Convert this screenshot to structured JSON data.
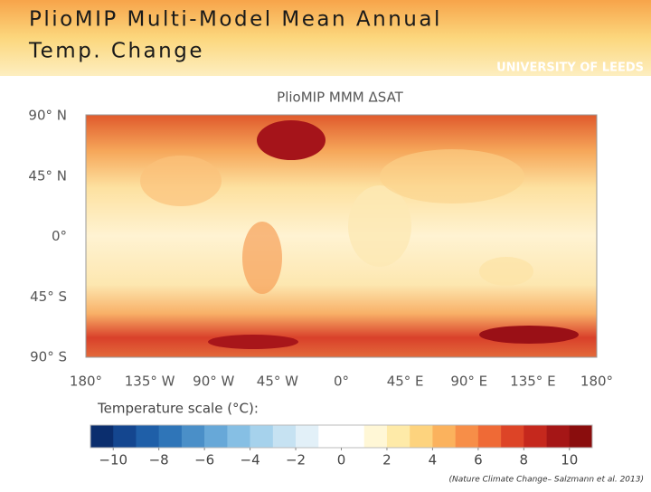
{
  "header": {
    "title_lines": [
      "PlioMIP Multi-Model Mean Annual",
      "Temp. Change"
    ],
    "logo": "UNIVERSITY OF LEEDS"
  },
  "map": {
    "title": "PlioMIP MMM ΔSAT",
    "lat_labels": [
      "90° N",
      "45° N",
      "0°",
      "45° S",
      "90° S"
    ],
    "lon_labels": [
      "180°",
      "135° W",
      "90° W",
      "45° W",
      "0°",
      "45° E",
      "90° E",
      "135° E",
      "180°"
    ]
  },
  "colorbar": {
    "label": "Temperature scale (°C):",
    "lim": [
      -11,
      11
    ],
    "ticks": [
      {
        "value": -10,
        "label": "−10"
      },
      {
        "value": -8,
        "label": "−8"
      },
      {
        "value": -6,
        "label": "−6"
      },
      {
        "value": -4,
        "label": "−4"
      },
      {
        "value": -2,
        "label": "−2"
      },
      0,
      2,
      4,
      6,
      8,
      10
    ],
    "colors": [
      "#0b2e6e",
      "#14468f",
      "#1f5fa8",
      "#2f75b8",
      "#4a8fc8",
      "#67a8d8",
      "#86bfe4",
      "#a6d2ec",
      "#c6e2f2",
      "#e2f0f8",
      "#ffffff",
      "#ffffff",
      "#fff7d6",
      "#feeaa8",
      "#fdd37e",
      "#fbb25d",
      "#f78e48",
      "#ef6a36",
      "#dd4427",
      "#c5281d",
      "#a51616",
      "#8a0d0d"
    ]
  },
  "citation": "(Nature Climate Change– Salzmann et al. 2013)"
}
